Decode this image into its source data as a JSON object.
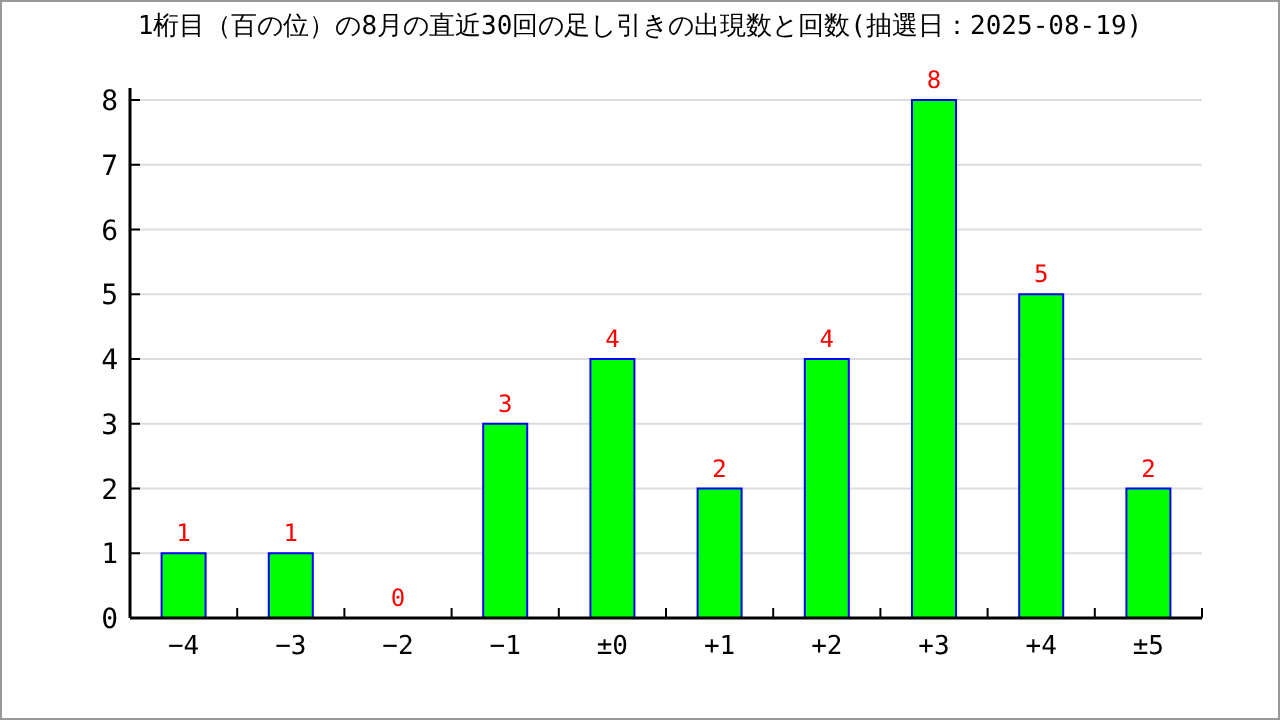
{
  "chart_data": {
    "type": "bar",
    "title": "1桁目（百の位）の8月の直近30回の足し引きの出現数と回数(抽選日：2025-08-19)",
    "categories": [
      "−4",
      "−3",
      "−2",
      "−1",
      "±0",
      "+1",
      "+2",
      "+3",
      "+4",
      "±5"
    ],
    "values": [
      1,
      1,
      0,
      3,
      4,
      2,
      4,
      8,
      5,
      2
    ],
    "color": "#00ff00",
    "ylim": [
      0,
      8
    ],
    "yticks": [
      0,
      1,
      2,
      3,
      4,
      5,
      6,
      7,
      8
    ],
    "grid": "y",
    "data_labels": true
  }
}
